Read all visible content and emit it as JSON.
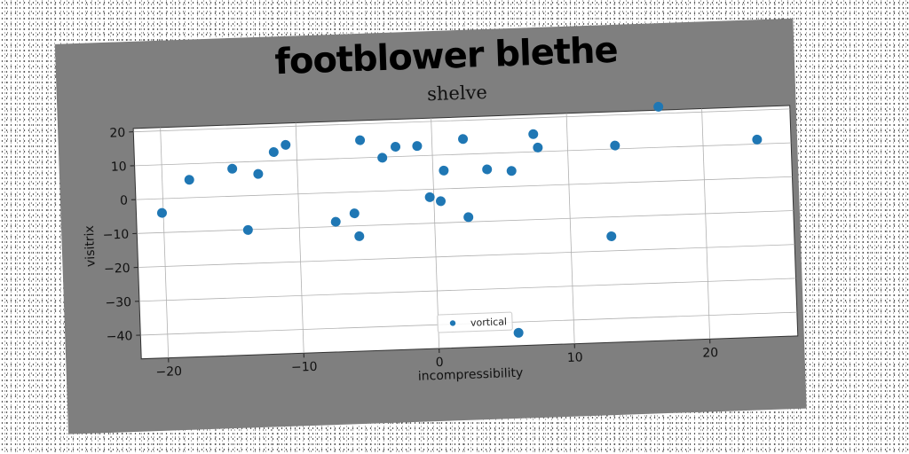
{
  "figure": {
    "suptitle": "footblower blethe",
    "background": "#7f7f7f"
  },
  "chart_data": {
    "type": "scatter",
    "title": "shelve",
    "xlabel": "incompressibility",
    "ylabel": "visitrix",
    "xlim": [
      -22,
      26.5
    ],
    "ylim": [
      -47,
      21
    ],
    "xticks": [
      -20,
      -10,
      0,
      10,
      20
    ],
    "yticks": [
      -40,
      -30,
      -20,
      -10,
      0,
      10,
      20
    ],
    "grid": true,
    "legend_loc": "lower center",
    "series": [
      {
        "name": "vortical",
        "color": "#1f77b4",
        "points": [
          [
            -20.1,
            -4.2
          ],
          [
            -18.0,
            5.3
          ],
          [
            -14.8,
            8.1
          ],
          [
            -13.8,
            -10.1
          ],
          [
            -12.9,
            6.3
          ],
          [
            -11.7,
            12.6
          ],
          [
            -10.8,
            14.6
          ],
          [
            -7.3,
            -8.6
          ],
          [
            -5.9,
            -6.3
          ],
          [
            -5.6,
            -13.1
          ],
          [
            -5.3,
            15.2
          ],
          [
            -3.7,
            9.8
          ],
          [
            -2.7,
            12.9
          ],
          [
            -1.1,
            12.9
          ],
          [
            -0.3,
            -2.3
          ],
          [
            0.5,
            -3.6
          ],
          [
            0.8,
            5.4
          ],
          [
            2.3,
            14.5
          ],
          [
            2.5,
            -8.6
          ],
          [
            4.0,
            5.3
          ],
          [
            5.8,
            4.6
          ],
          [
            5.9,
            -43.2
          ],
          [
            7.5,
            15.2
          ],
          [
            7.8,
            11.2
          ],
          [
            13.0,
            -15.7
          ],
          [
            13.5,
            11.0
          ],
          [
            16.8,
            22.0
          ],
          [
            24.0,
            11.3
          ]
        ]
      }
    ]
  }
}
